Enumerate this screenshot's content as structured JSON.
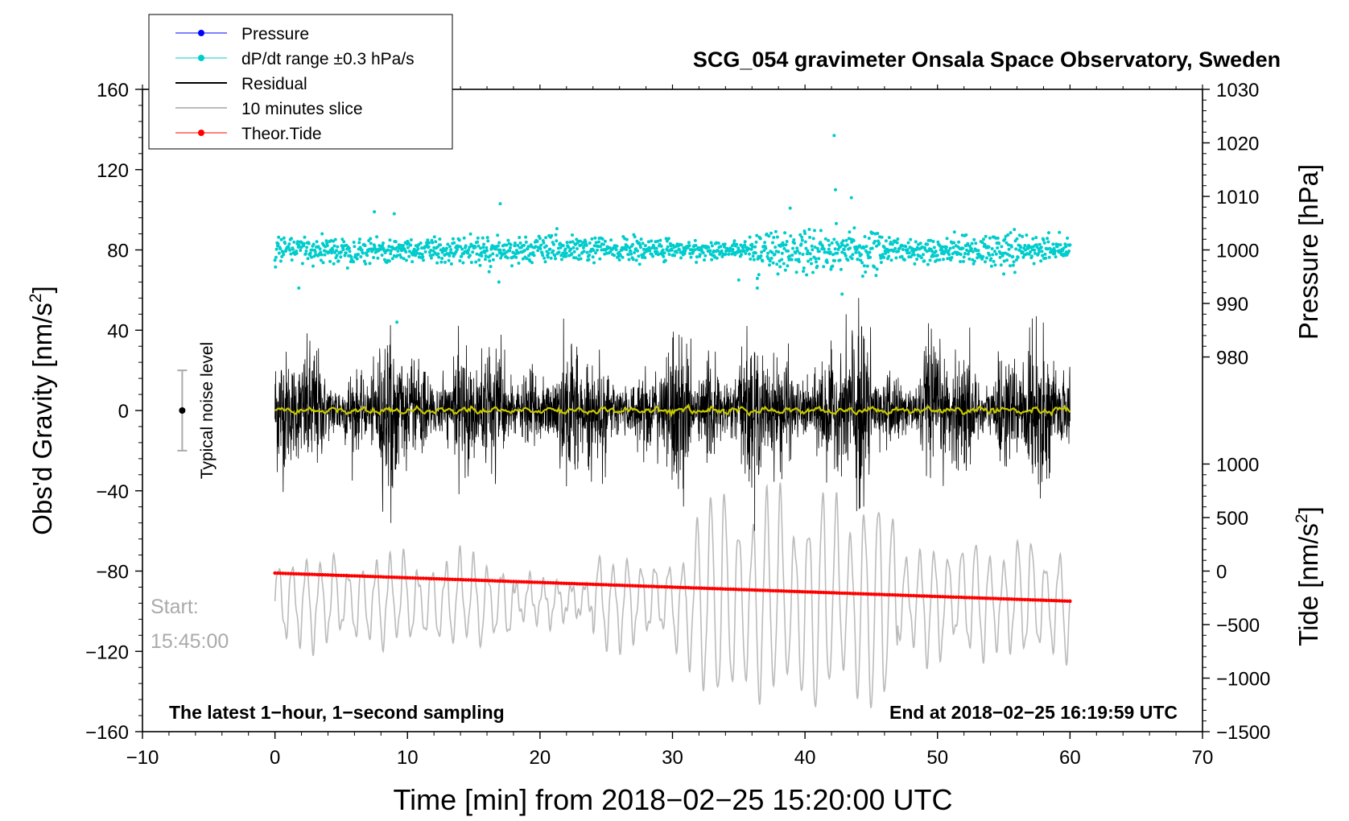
{
  "chart_data": {
    "type": "line",
    "title": "SCG_054 gravimeter Onsala Space Observatory, Sweden",
    "xlabel": "Time [min] from 2018−02−25 15:20:00 UTC",
    "xlim": [
      -10,
      70
    ],
    "xticks": [
      "−10",
      "0",
      "10",
      "20",
      "30",
      "40",
      "50",
      "60",
      "70"
    ],
    "xtick_values": [
      -10,
      0,
      10,
      20,
      30,
      40,
      50,
      60,
      70
    ],
    "left_axis": {
      "label_main": "Obs'd Gravity [nm/s",
      "label_sup": "2",
      "label_end": "]",
      "ylim": [
        -160,
        160
      ],
      "ticks": [
        "160",
        "120",
        "80",
        "40",
        "0",
        "−40",
        "−80",
        "−120",
        "−160"
      ],
      "tick_values": [
        160,
        120,
        80,
        40,
        0,
        -40,
        -80,
        -120,
        -160
      ]
    },
    "right_pressure_axis": {
      "label": "Pressure [hPa]",
      "ticks": [
        "1030",
        "1020",
        "1010",
        "1000",
        "990",
        "980"
      ],
      "tick_values": [
        1030,
        1020,
        1010,
        1000,
        990,
        980
      ],
      "range_hpa": [
        970,
        1030
      ]
    },
    "right_tide_axis": {
      "label_main": "Tide [nm/s",
      "label_sup": "2",
      "label_end": "]",
      "ticks": [
        "1000",
        "500",
        "0",
        "−500",
        "−1000",
        "−1500"
      ],
      "tick_values": [
        1000,
        500,
        0,
        -500,
        -1000,
        -1500
      ],
      "range": [
        -1500,
        1000
      ]
    },
    "legend": {
      "placement": "top-left",
      "entries": [
        {
          "label": "Pressure",
          "color": "#0000ff",
          "marker": "dot"
        },
        {
          "label": "dP/dt range ±0.3 hPa/s",
          "color": "#00cccc",
          "marker": "dot"
        },
        {
          "label": "Residual",
          "color": "#000000",
          "marker": "line"
        },
        {
          "label": "10 minutes slice",
          "color": "#bbbbbb",
          "marker": "line"
        },
        {
          "label": "Theor.Tide",
          "color": "#ff0000",
          "marker": "dot"
        }
      ]
    },
    "series": [
      {
        "name": "Pressure",
        "color": "#0000ff",
        "values": []
      },
      {
        "name": "dP/dt range ±0.3 hPa/s",
        "color": "#00cccc",
        "baseline_gravity": 80,
        "scale_gravity_per_hpa_s": 44,
        "x_range": [
          0,
          60
        ]
      },
      {
        "name": "Residual",
        "color": "#000000",
        "baseline": 0,
        "typical_amplitude": 20,
        "max_peak": 65,
        "min_trough": -68,
        "x_range": [
          0,
          60
        ]
      },
      {
        "name": "Smoothed residual",
        "color": "#c8c800",
        "baseline": 0,
        "x_range": [
          0,
          60
        ]
      },
      {
        "name": "10 minutes slice",
        "color": "#bbbbbb",
        "baseline_gravity": -95,
        "typical_amplitude": 20,
        "max_amplitude": 60,
        "x_range": [
          0,
          60
        ]
      },
      {
        "name": "Theor.Tide",
        "color": "#ff0000",
        "x": [
          0,
          60
        ],
        "gravity_values": [
          -81,
          -95
        ]
      }
    ],
    "noise_bar": {
      "label": "Typical noise level",
      "x": -7,
      "center": 0,
      "half_range": 20
    },
    "annotations": {
      "start_label": "Start:",
      "start_time": "15:45:00",
      "bottom_left": "The latest 1−hour, 1−second sampling",
      "bottom_right": "End at 2018−02−25 16:19:59 UTC"
    },
    "colors": {
      "pressure": "#0000ff",
      "dpdt": "#00cccc",
      "residual": "#000000",
      "smoothed": "#c8c800",
      "slice": "#bbbbbb",
      "tide": "#ff0000",
      "annotation_gray": "#aaaaaa"
    }
  }
}
